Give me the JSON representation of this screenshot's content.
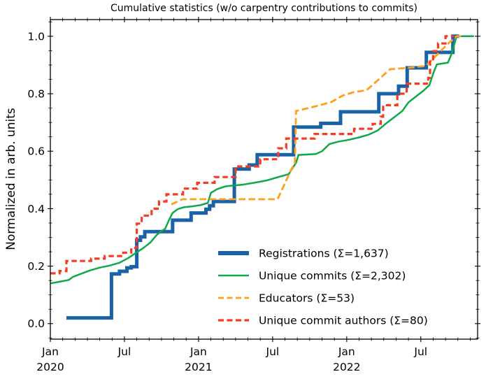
{
  "figure": {
    "background": "#ffffff"
  },
  "chart_data": {
    "type": "line",
    "title": "Cumulative statistics (w/o carpentry contributions to commits)",
    "xlabel": "",
    "ylabel": "Normalized in arb. units",
    "x_unit": "months since 2020-01",
    "xlim": [
      0,
      34.6
    ],
    "ylim": [
      -0.054,
      1.058
    ],
    "grid": false,
    "x_major_ticks": [
      {
        "month": 0,
        "label": "Jan",
        "year": "2020"
      },
      {
        "month": 6,
        "label": "Jul",
        "year": ""
      },
      {
        "month": 12,
        "label": "Jan",
        "year": "2021"
      },
      {
        "month": 18,
        "label": "Jul",
        "year": ""
      },
      {
        "month": 24,
        "label": "Jan",
        "year": "2022"
      },
      {
        "month": 30,
        "label": "Jul",
        "year": ""
      }
    ],
    "x_minor_tick_every_months": 1,
    "y_major_ticks": [
      {
        "value": 0.0,
        "label": "0.0"
      },
      {
        "value": 0.2,
        "label": "0.2"
      },
      {
        "value": 0.4,
        "label": "0.4"
      },
      {
        "value": 0.6,
        "label": "0.6"
      },
      {
        "value": 0.8,
        "label": "0.8"
      },
      {
        "value": 1.0,
        "label": "1.0"
      }
    ],
    "y_minor_tick_step": 0.05,
    "legend": {
      "position": "lower-right-inside",
      "frame": false
    },
    "series": [
      {
        "id": "registrations",
        "label": "Registrations  (Σ=1,637)",
        "total": 1637,
        "color": "#1a62a8",
        "style": "solid",
        "width": 5,
        "step": true,
        "points": [
          [
            1.3,
            0.02
          ],
          [
            4.95,
            0.173
          ],
          [
            5.6,
            0.182
          ],
          [
            6.2,
            0.194
          ],
          [
            6.55,
            0.198
          ],
          [
            7.0,
            0.29
          ],
          [
            7.3,
            0.302
          ],
          [
            7.65,
            0.32
          ],
          [
            9.9,
            0.36
          ],
          [
            11.4,
            0.385
          ],
          [
            12.6,
            0.398
          ],
          [
            12.9,
            0.41
          ],
          [
            13.2,
            0.425
          ],
          [
            14.9,
            0.538
          ],
          [
            16.1,
            0.552
          ],
          [
            16.75,
            0.588
          ],
          [
            19.7,
            0.684
          ],
          [
            21.9,
            0.697
          ],
          [
            23.5,
            0.737
          ],
          [
            26.6,
            0.8
          ],
          [
            28.2,
            0.826
          ],
          [
            28.9,
            0.89
          ],
          [
            30.45,
            0.944
          ],
          [
            32.6,
            1.0
          ],
          [
            33.1,
            1.0
          ]
        ]
      },
      {
        "id": "unique_commits",
        "label": "Unique commits (Σ=2,302)",
        "total": 2302,
        "color": "#0fa94c",
        "style": "solid",
        "width": 2.5,
        "step": false,
        "points": [
          [
            0,
            0.14
          ],
          [
            0.9,
            0.147
          ],
          [
            1.5,
            0.152
          ],
          [
            1.8,
            0.162
          ],
          [
            2.4,
            0.172
          ],
          [
            3.2,
            0.185
          ],
          [
            4.0,
            0.195
          ],
          [
            4.8,
            0.202
          ],
          [
            5.6,
            0.212
          ],
          [
            6.3,
            0.228
          ],
          [
            6.9,
            0.245
          ],
          [
            7.5,
            0.262
          ],
          [
            8.1,
            0.282
          ],
          [
            8.6,
            0.308
          ],
          [
            9.0,
            0.322
          ],
          [
            9.3,
            0.33
          ],
          [
            9.6,
            0.36
          ],
          [
            9.9,
            0.385
          ],
          [
            10.3,
            0.398
          ],
          [
            10.8,
            0.405
          ],
          [
            11.5,
            0.408
          ],
          [
            12.2,
            0.413
          ],
          [
            12.75,
            0.42
          ],
          [
            13.0,
            0.455
          ],
          [
            13.5,
            0.468
          ],
          [
            14.2,
            0.478
          ],
          [
            15.5,
            0.483
          ],
          [
            16.5,
            0.49
          ],
          [
            17.5,
            0.498
          ],
          [
            18.3,
            0.508
          ],
          [
            19.3,
            0.52
          ],
          [
            19.9,
            0.56
          ],
          [
            20.1,
            0.587
          ],
          [
            21.5,
            0.59
          ],
          [
            22.0,
            0.6
          ],
          [
            22.6,
            0.625
          ],
          [
            23.3,
            0.633
          ],
          [
            24.2,
            0.64
          ],
          [
            25.0,
            0.648
          ],
          [
            25.8,
            0.658
          ],
          [
            26.5,
            0.672
          ],
          [
            27.2,
            0.697
          ],
          [
            27.9,
            0.72
          ],
          [
            28.5,
            0.74
          ],
          [
            29.0,
            0.77
          ],
          [
            29.6,
            0.79
          ],
          [
            30.2,
            0.81
          ],
          [
            30.7,
            0.83
          ],
          [
            31.0,
            0.87
          ],
          [
            31.3,
            0.902
          ],
          [
            32.2,
            0.908
          ],
          [
            32.5,
            0.94
          ],
          [
            32.9,
            1.0
          ],
          [
            34.3,
            1.0
          ]
        ]
      },
      {
        "id": "educators",
        "label": "Educators (Σ=53)",
        "total": 53,
        "color": "#ff9f1d",
        "style": "dashed",
        "width": 2.8,
        "step": false,
        "points": [
          [
            9.8,
            0.415
          ],
          [
            10.7,
            0.433
          ],
          [
            18.4,
            0.433
          ],
          [
            19.55,
            0.54
          ],
          [
            19.8,
            0.555
          ],
          [
            19.9,
            0.74
          ],
          [
            20.9,
            0.75
          ],
          [
            22.7,
            0.77
          ],
          [
            23.7,
            0.794
          ],
          [
            24.6,
            0.806
          ],
          [
            25.6,
            0.812
          ],
          [
            26.6,
            0.85
          ],
          [
            27.5,
            0.885
          ],
          [
            29.5,
            0.892
          ],
          [
            30.4,
            0.897
          ],
          [
            31.3,
            0.935
          ],
          [
            32.1,
            0.97
          ],
          [
            32.9,
            1.0
          ],
          [
            33.4,
            1.0
          ]
        ]
      },
      {
        "id": "unique_commit_authors",
        "label": "Unique commit authors (Σ=80)",
        "total": 80,
        "color": "#f63b21",
        "style": "dashed",
        "width": 3.2,
        "step": true,
        "points": [
          [
            0,
            0.175
          ],
          [
            0.75,
            0.183
          ],
          [
            1.3,
            0.218
          ],
          [
            3.3,
            0.226
          ],
          [
            4.4,
            0.235
          ],
          [
            5.9,
            0.247
          ],
          [
            6.55,
            0.263
          ],
          [
            7.0,
            0.348
          ],
          [
            7.4,
            0.376
          ],
          [
            8.2,
            0.4
          ],
          [
            8.8,
            0.425
          ],
          [
            9.4,
            0.45
          ],
          [
            10.75,
            0.47
          ],
          [
            11.9,
            0.49
          ],
          [
            13.3,
            0.51
          ],
          [
            15.0,
            0.547
          ],
          [
            17.0,
            0.572
          ],
          [
            18.45,
            0.61
          ],
          [
            19.1,
            0.644
          ],
          [
            21.4,
            0.66
          ],
          [
            24.6,
            0.678
          ],
          [
            26.1,
            0.695
          ],
          [
            26.75,
            0.72
          ],
          [
            26.95,
            0.76
          ],
          [
            28.1,
            0.8
          ],
          [
            28.85,
            0.835
          ],
          [
            30.6,
            0.855
          ],
          [
            30.75,
            0.92
          ],
          [
            31.0,
            0.948
          ],
          [
            31.4,
            0.975
          ],
          [
            32.0,
            1.0
          ],
          [
            32.7,
            1.0
          ]
        ]
      }
    ]
  }
}
